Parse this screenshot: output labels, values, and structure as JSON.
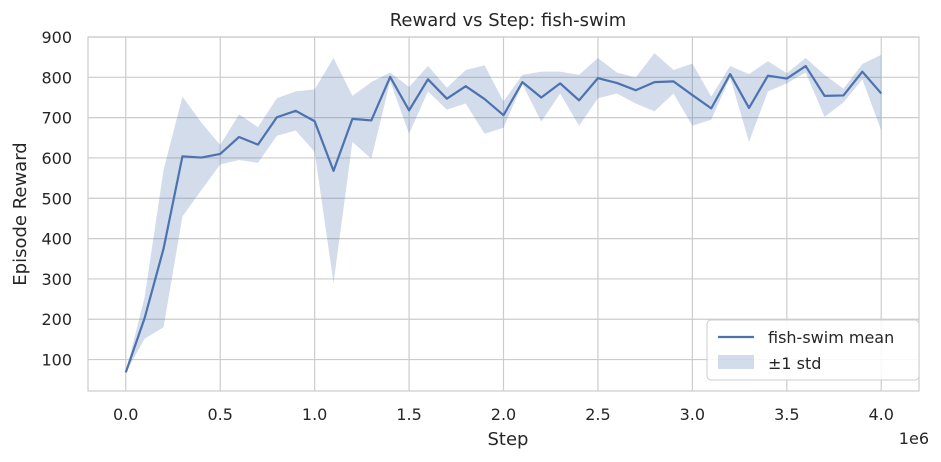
{
  "chart_data": {
    "type": "line",
    "title": "Reward vs Step: fish-swim",
    "xlabel": "Step",
    "ylabel": "Episode Reward",
    "x_offset_label": "1e6",
    "xlim": [
      -0.2,
      4.2
    ],
    "ylim": [
      22,
      900
    ],
    "x_ticks": [
      0.0,
      0.5,
      1.0,
      1.5,
      2.0,
      2.5,
      3.0,
      3.5,
      4.0
    ],
    "x_tick_labels": [
      "0.0",
      "0.5",
      "1.0",
      "1.5",
      "2.0",
      "2.5",
      "3.0",
      "3.5",
      "4.0"
    ],
    "y_ticks": [
      100,
      200,
      300,
      400,
      500,
      600,
      700,
      800,
      900
    ],
    "y_tick_labels": [
      "100",
      "200",
      "300",
      "400",
      "500",
      "600",
      "700",
      "800",
      "900"
    ],
    "grid": true,
    "legend_position": "bottom-right",
    "colors": {
      "line": "#4c72b0",
      "band": "#4c72b0",
      "grid": "#cccccc"
    },
    "series": [
      {
        "name": "fish-swim mean",
        "x": [
          0.0,
          0.1,
          0.2,
          0.3,
          0.4,
          0.5,
          0.6,
          0.7,
          0.8,
          0.9,
          1.0,
          1.1,
          1.2,
          1.3,
          1.4,
          1.5,
          1.6,
          1.7,
          1.8,
          1.9,
          2.0,
          2.1,
          2.2,
          2.3,
          2.4,
          2.5,
          2.6,
          2.7,
          2.8,
          2.9,
          3.0,
          3.1,
          3.2,
          3.3,
          3.4,
          3.5,
          3.6,
          3.7,
          3.8,
          3.9,
          4.0
        ],
        "y": [
          68,
          203,
          375,
          604,
          601,
          610,
          652,
          633,
          701,
          717,
          691,
          568,
          697,
          693,
          801,
          718,
          795,
          747,
          778,
          746,
          706,
          788,
          750,
          785,
          743,
          798,
          786,
          768,
          788,
          790,
          756,
          723,
          808,
          724,
          804,
          797,
          828,
          754,
          755,
          814,
          760
        ],
        "std_label": "±1 std",
        "lower": [
          68,
          152,
          180,
          455,
          520,
          584,
          595,
          588,
          655,
          668,
          615,
          290,
          640,
          598,
          790,
          660,
          765,
          720,
          735,
          660,
          675,
          783,
          690,
          760,
          680,
          748,
          760,
          735,
          716,
          760,
          680,
          695,
          800,
          640,
          765,
          785,
          812,
          702,
          738,
          795,
          668
        ],
        "upper": [
          68,
          255,
          570,
          752,
          688,
          632,
          708,
          676,
          748,
          765,
          770,
          848,
          754,
          788,
          812,
          776,
          828,
          774,
          818,
          830,
          740,
          806,
          814,
          814,
          806,
          848,
          812,
          800,
          860,
          818,
          834,
          752,
          828,
          808,
          840,
          810,
          848,
          806,
          772,
          833,
          856
        ]
      }
    ]
  }
}
